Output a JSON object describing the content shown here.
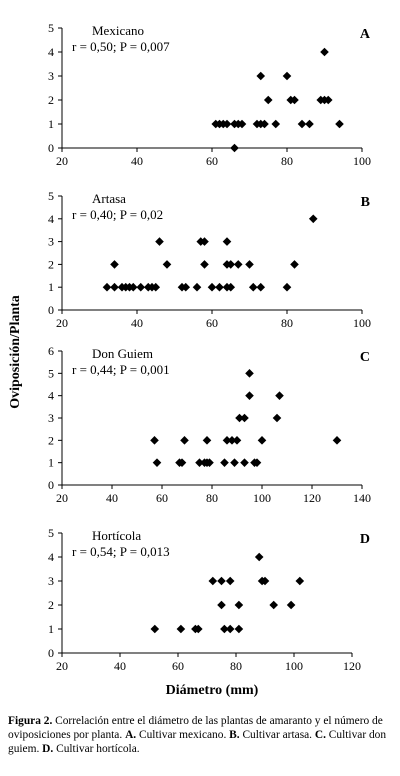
{
  "figure": {
    "y_label": "Oviposición/Planta",
    "x_label": "Diámetro (mm)",
    "caption": [
      {
        "text": "Figura 2.",
        "bold": true
      },
      {
        "text": " Correlación entre el diámetro de las plantas de amaranto y el número de oviposiciones por planta. ",
        "bold": false
      },
      {
        "text": "A.",
        "bold": true
      },
      {
        "text": " Cultivar mexicano. ",
        "bold": false
      },
      {
        "text": "B.",
        "bold": true
      },
      {
        "text": " Cultivar artasa. ",
        "bold": false
      },
      {
        "text": "C.",
        "bold": true
      },
      {
        "text": " Cultivar don guiem. ",
        "bold": false
      },
      {
        "text": "D.",
        "bold": true
      },
      {
        "text": " Cultivar hortícola.",
        "bold": false
      }
    ]
  },
  "chart_data": [
    {
      "type": "scatter",
      "panel_letter": "A",
      "series_label": "Mexicano",
      "stat_text": "r = 0,50; P = 0,007",
      "xlim": [
        20,
        100
      ],
      "x_ticks": [
        20,
        40,
        60,
        80,
        100
      ],
      "ylim": [
        0,
        5
      ],
      "y_ticks": [
        0,
        1,
        2,
        3,
        4,
        5
      ],
      "points": [
        [
          61,
          1
        ],
        [
          62,
          1
        ],
        [
          63,
          1
        ],
        [
          64,
          1
        ],
        [
          66,
          1
        ],
        [
          66,
          0
        ],
        [
          67,
          1
        ],
        [
          68,
          1
        ],
        [
          72,
          1
        ],
        [
          73,
          1
        ],
        [
          74,
          1
        ],
        [
          77,
          1
        ],
        [
          84,
          1
        ],
        [
          86,
          1
        ],
        [
          94,
          1
        ],
        [
          73,
          3
        ],
        [
          75,
          2
        ],
        [
          80,
          3
        ],
        [
          81,
          2
        ],
        [
          82,
          2
        ],
        [
          89,
          2
        ],
        [
          90,
          2
        ],
        [
          91,
          2
        ],
        [
          90,
          4
        ]
      ]
    },
    {
      "type": "scatter",
      "panel_letter": "B",
      "series_label": "Artasa",
      "stat_text": "r = 0,40; P = 0,02",
      "xlim": [
        20,
        100
      ],
      "x_ticks": [
        20,
        40,
        60,
        80,
        100
      ],
      "ylim": [
        0,
        5
      ],
      "y_ticks": [
        0,
        1,
        2,
        3,
        4,
        5
      ],
      "points": [
        [
          32,
          1
        ],
        [
          34,
          1
        ],
        [
          36,
          1
        ],
        [
          37,
          1
        ],
        [
          38,
          1
        ],
        [
          39,
          1
        ],
        [
          41,
          1
        ],
        [
          43,
          1
        ],
        [
          44,
          1
        ],
        [
          45,
          1
        ],
        [
          52,
          1
        ],
        [
          53,
          1
        ],
        [
          56,
          1
        ],
        [
          60,
          1
        ],
        [
          62,
          1
        ],
        [
          64,
          1
        ],
        [
          65,
          1
        ],
        [
          71,
          1
        ],
        [
          73,
          1
        ],
        [
          80,
          1
        ],
        [
          34,
          2
        ],
        [
          48,
          2
        ],
        [
          58,
          2
        ],
        [
          64,
          2
        ],
        [
          65,
          2
        ],
        [
          67,
          2
        ],
        [
          70,
          2
        ],
        [
          82,
          2
        ],
        [
          46,
          3
        ],
        [
          57,
          3
        ],
        [
          58,
          3
        ],
        [
          64,
          3
        ],
        [
          87,
          4
        ]
      ]
    },
    {
      "type": "scatter",
      "panel_letter": "C",
      "series_label": "Don Guiem",
      "stat_text": "r = 0,44; P = 0,001",
      "xlim": [
        20,
        140
      ],
      "x_ticks": [
        20,
        40,
        60,
        80,
        100,
        120,
        140
      ],
      "ylim": [
        0,
        6
      ],
      "y_ticks": [
        0,
        1,
        2,
        3,
        4,
        5,
        6
      ],
      "points": [
        [
          58,
          1
        ],
        [
          67,
          1
        ],
        [
          68,
          1
        ],
        [
          75,
          1
        ],
        [
          77,
          1
        ],
        [
          78,
          1
        ],
        [
          79,
          1
        ],
        [
          85,
          1
        ],
        [
          89,
          1
        ],
        [
          93,
          1
        ],
        [
          97,
          1
        ],
        [
          98,
          1
        ],
        [
          57,
          2
        ],
        [
          69,
          2
        ],
        [
          78,
          2
        ],
        [
          86,
          2
        ],
        [
          88,
          2
        ],
        [
          90,
          2
        ],
        [
          100,
          2
        ],
        [
          130,
          2
        ],
        [
          91,
          3
        ],
        [
          93,
          3
        ],
        [
          106,
          3
        ],
        [
          95,
          4
        ],
        [
          107,
          4
        ],
        [
          95,
          5
        ]
      ]
    },
    {
      "type": "scatter",
      "panel_letter": "D",
      "series_label": "Hortícola",
      "stat_text": "r = 0,54; P = 0,013",
      "xlim": [
        20,
        120
      ],
      "x_ticks": [
        20,
        40,
        60,
        80,
        100,
        120
      ],
      "ylim": [
        0,
        5
      ],
      "y_ticks": [
        0,
        1,
        2,
        3,
        4,
        5
      ],
      "points": [
        [
          52,
          1
        ],
        [
          61,
          1
        ],
        [
          66,
          1
        ],
        [
          67,
          1
        ],
        [
          76,
          1
        ],
        [
          78,
          1
        ],
        [
          81,
          1
        ],
        [
          72,
          3
        ],
        [
          75,
          3
        ],
        [
          78,
          3
        ],
        [
          89,
          3
        ],
        [
          90,
          3
        ],
        [
          102,
          3
        ],
        [
          75,
          2
        ],
        [
          81,
          2
        ],
        [
          93,
          2
        ],
        [
          99,
          2
        ],
        [
          88,
          4
        ]
      ]
    }
  ]
}
